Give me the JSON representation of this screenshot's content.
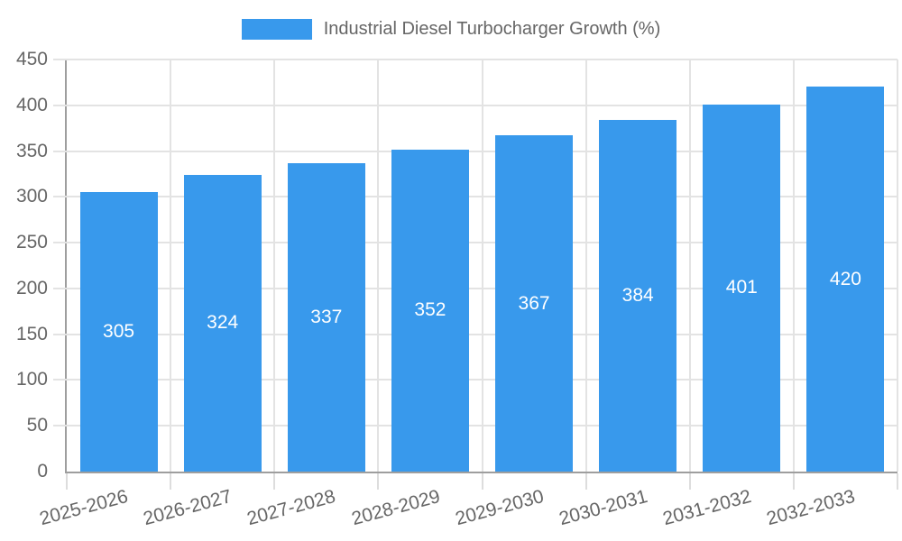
{
  "legend": {
    "label": "Industrial Diesel Turbocharger Growth (%)"
  },
  "chart_data": {
    "type": "bar",
    "title": "Industrial Diesel Turbocharger Growth (%)",
    "categories": [
      "2025-2026",
      "2026-2027",
      "2027-2028",
      "2028-2029",
      "2029-2030",
      "2030-2031",
      "2031-2032",
      "2032-2033"
    ],
    "values": [
      305,
      324,
      337,
      352,
      367,
      384,
      401,
      420
    ],
    "xlabel": "",
    "ylabel": "",
    "ylim": [
      0,
      450
    ],
    "yticks": [
      0,
      50,
      100,
      150,
      200,
      250,
      300,
      350,
      400,
      450
    ],
    "grid": true,
    "legend_position": "top",
    "bar_labels_inside": true,
    "colors": {
      "bar": "#3899EC",
      "bar_label": "#FFFFFF",
      "axis_line": "#9E9E9E",
      "grid_line": "#E3E3E3",
      "tick_line": "#DDDDDD",
      "text": "#666666",
      "background": "#FFFFFF"
    }
  }
}
